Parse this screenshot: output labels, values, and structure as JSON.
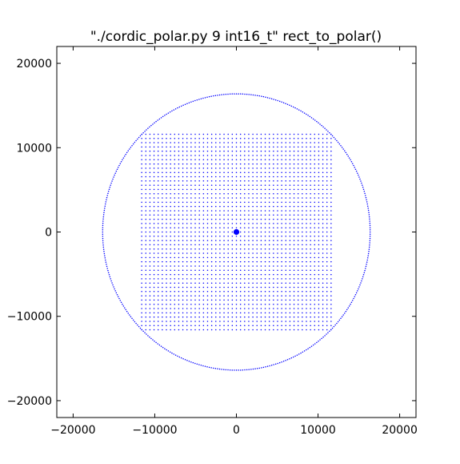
{
  "chart_data": {
    "type": "scatter",
    "title": "\"./cordic_polar.py 9 int16_t\" rect_to_polar()",
    "xlabel": "",
    "ylabel": "",
    "xlim": [
      -22000,
      22000
    ],
    "ylim": [
      -22000,
      22000
    ],
    "xticks": [
      -20000,
      -10000,
      0,
      10000,
      20000
    ],
    "yticks": [
      -20000,
      -10000,
      0,
      10000,
      20000
    ],
    "xtick_labels": [
      "−20000",
      "−10000",
      "0",
      "10000",
      "20000"
    ],
    "ytick_labels": [
      "−20000",
      "−10000",
      "0",
      "10000",
      "20000"
    ],
    "grid": false,
    "legend": "none",
    "series": [
      {
        "kind": "circle-ring",
        "center": [
          0,
          0
        ],
        "radius": 16384,
        "points": 400,
        "color": "#0000ff"
      },
      {
        "kind": "square-grid",
        "x_range": [
          -11600,
          11600
        ],
        "y_range": [
          -11600,
          11600
        ],
        "count_per_side": 47,
        "color": "#0000ff"
      },
      {
        "kind": "center-point",
        "x": [
          0
        ],
        "y": [
          0
        ],
        "color": "#0000ff"
      }
    ]
  }
}
